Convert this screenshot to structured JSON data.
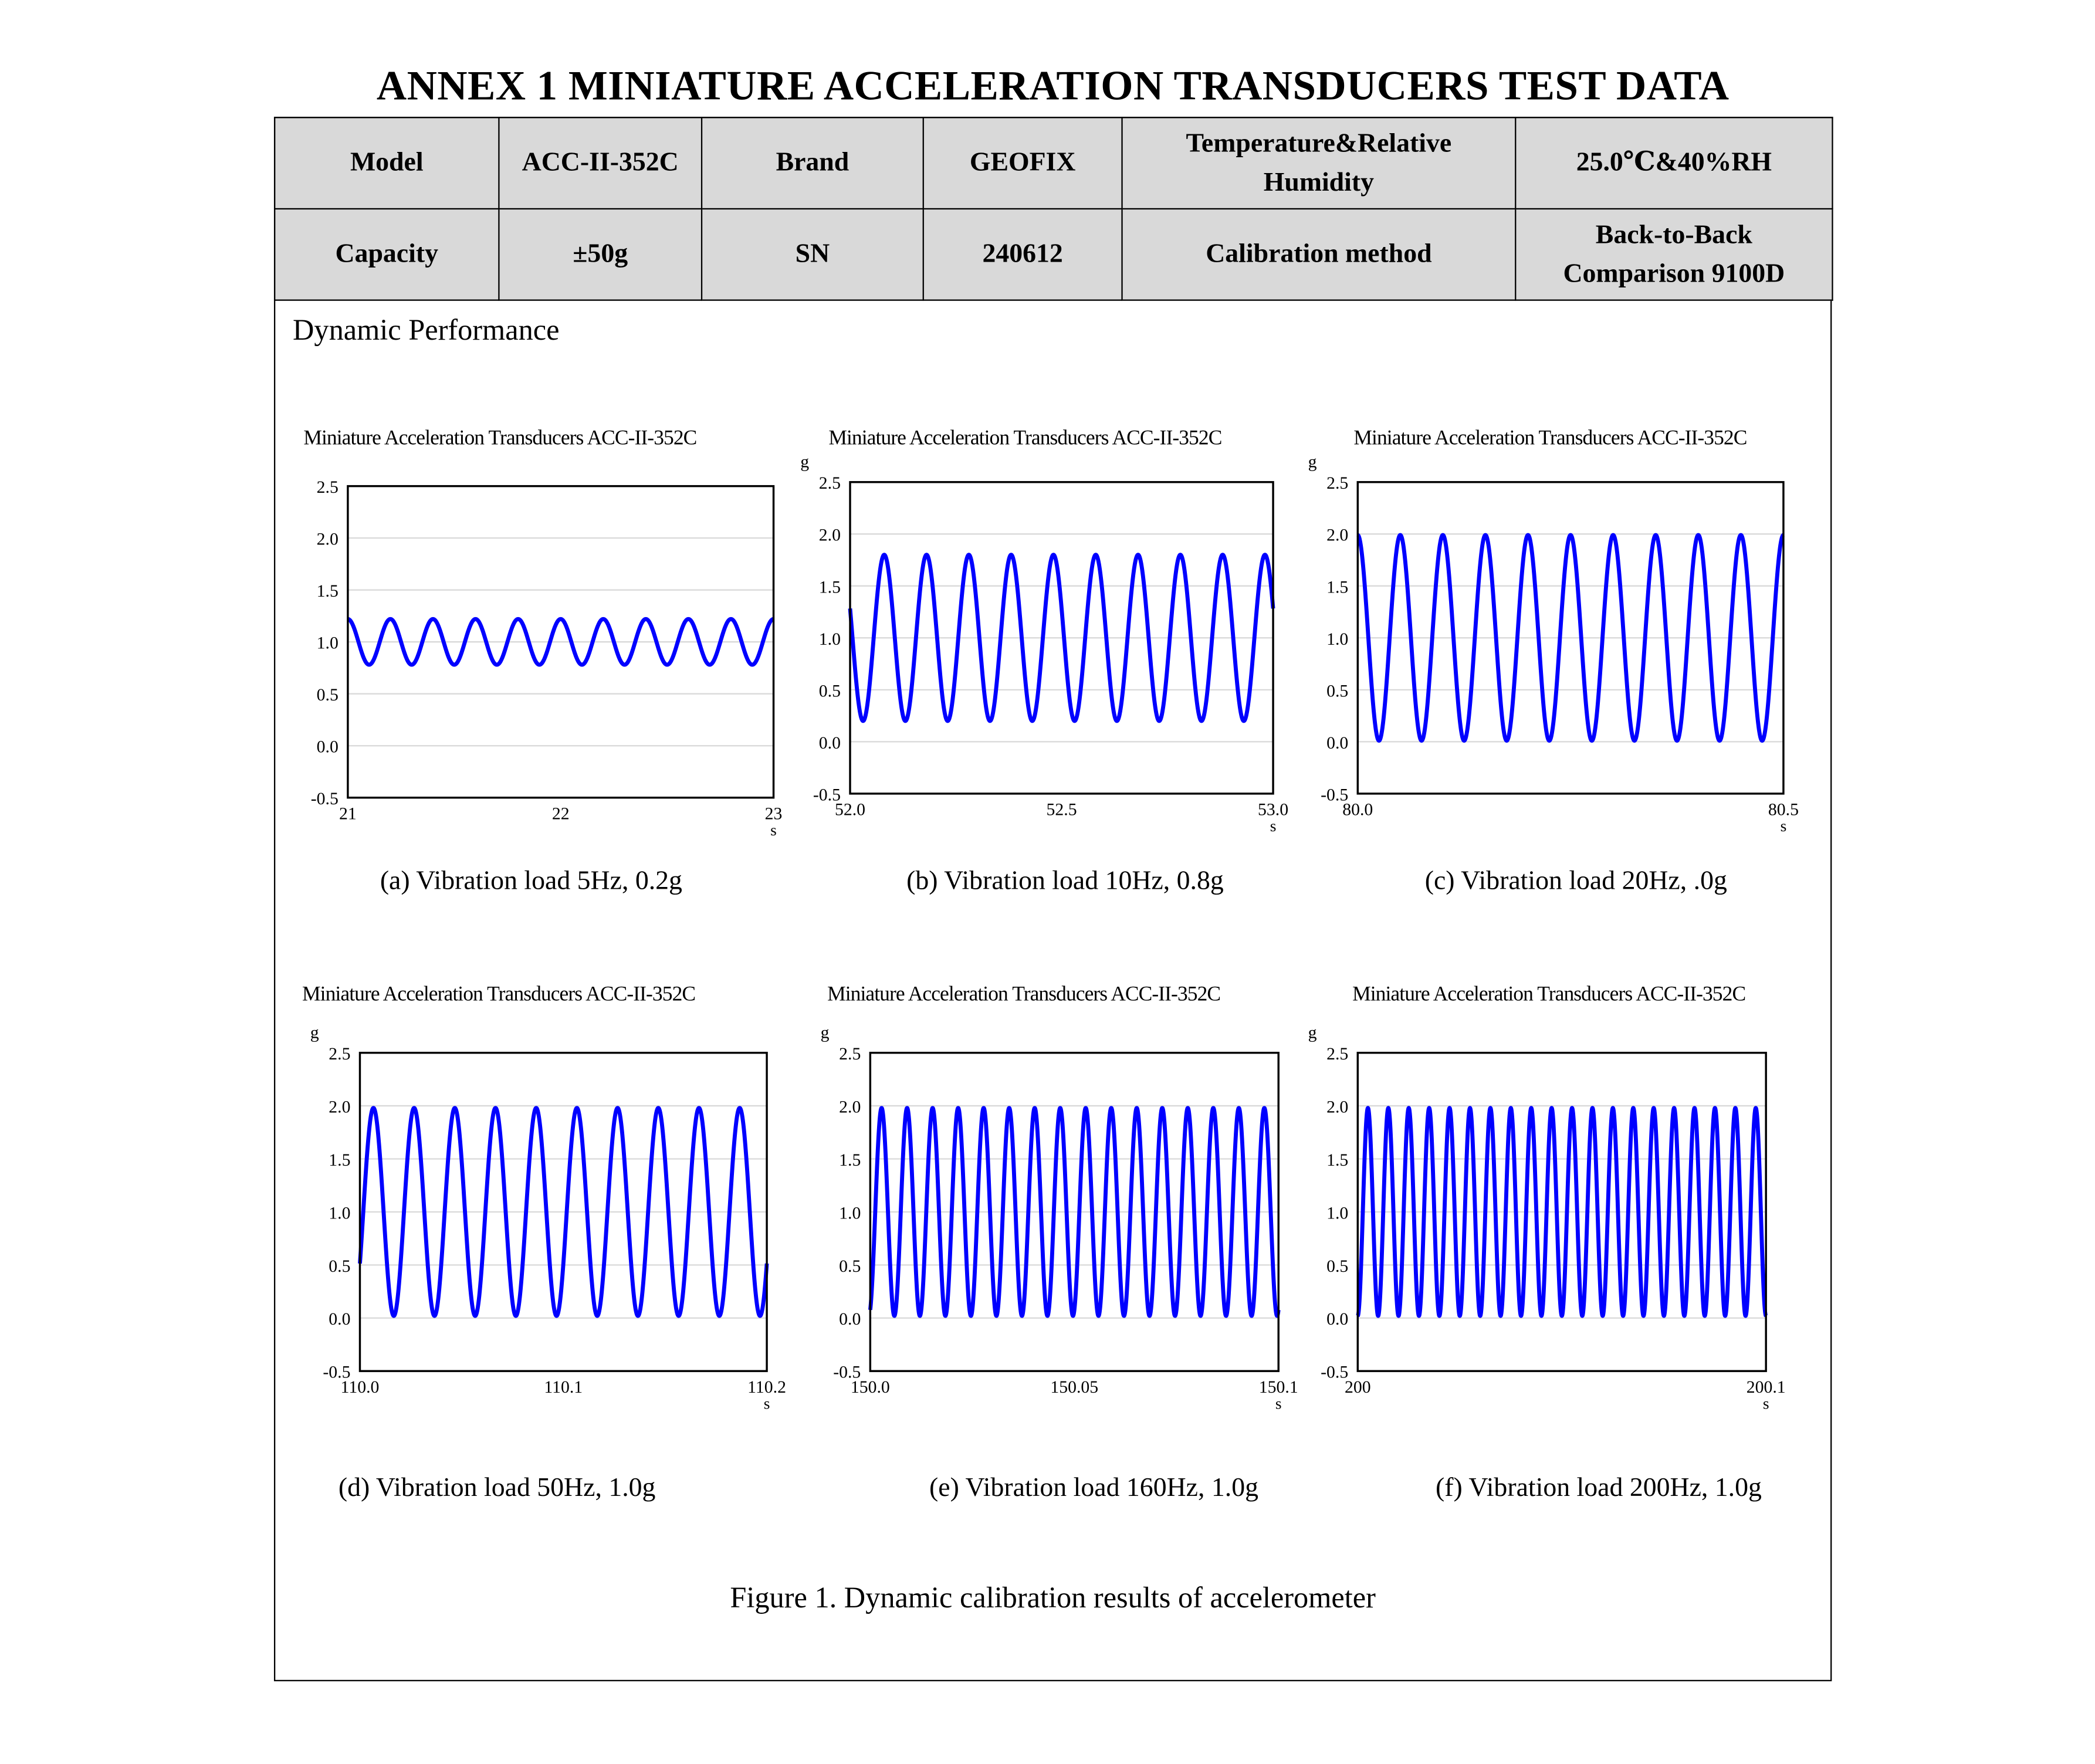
{
  "title": "ANNEX 1 MINIATURE ACCELERATION TRANSDUCERS TEST DATA",
  "info_table": {
    "row1": [
      "Model",
      "ACC-II-352C",
      "Brand",
      "GEOFIX",
      "Temperature&Relative Humidity",
      "25.0℃&40%RH"
    ],
    "row2": [
      "Capacity",
      "±50g",
      "SN",
      "240612",
      "Calibration method",
      "Back-to-Back Comparison 9100D"
    ]
  },
  "section_label": "Dynamic Performance",
  "figure_caption": "Figure 1. Dynamic calibration results of accelerometer",
  "colors": {
    "series": "#0000ff",
    "grid": "#d9d9d9",
    "header_bg": "#d9d9d9"
  },
  "chart_data": [
    {
      "type": "line",
      "title": "Miniature Acceleration Transducers ACC-II-352C",
      "caption": "(a)  Vibration load 5Hz, 0.2g",
      "ylabel": "",
      "xlabel": "s",
      "ylim": [
        -0.5,
        2.5
      ],
      "yticks": [
        "-0.5",
        "0.0",
        "0.5",
        "1.0",
        "1.5",
        "2.0",
        "2.5"
      ],
      "xlim": [
        21,
        23
      ],
      "xticks": [
        {
          "v": 21,
          "label": "21"
        },
        {
          "v": 22,
          "label": "22"
        },
        {
          "v": 23,
          "label": "23"
        }
      ],
      "grid": true,
      "series": [
        {
          "name": "acceleration",
          "mean": 1.0,
          "amplitude": 0.22,
          "frequency_hz": 5,
          "phase_rad": 0
        }
      ]
    },
    {
      "type": "line",
      "title": "Miniature Acceleration Transducers ACC-II-352C",
      "caption": "(b) Vibration load 10Hz, 0.8g",
      "ylabel": "g",
      "xlabel": "s",
      "ylim": [
        -0.5,
        2.5
      ],
      "yticks": [
        "-0.5",
        "0.0",
        "0.5",
        "1.0",
        "1.5",
        "2.0",
        "2.5"
      ],
      "xlim": [
        52.0,
        53.0
      ],
      "xticks": [
        {
          "v": 52.0,
          "label": "52.0"
        },
        {
          "v": 52.5,
          "label": "52.5"
        },
        {
          "v": 53.0,
          "label": "53.0"
        }
      ],
      "grid": true,
      "series": [
        {
          "name": "acceleration",
          "mean": 1.0,
          "amplitude": 0.8,
          "frequency_hz": 10,
          "phase_rad": 1.21
        }
      ]
    },
    {
      "type": "line",
      "title": "Miniature Acceleration Transducers ACC-II-352C",
      "caption": "(c) Vibration load 20Hz, .0g",
      "ylabel": "g",
      "xlabel": "s",
      "ylim": [
        -0.5,
        2.5
      ],
      "yticks": [
        "-0.5",
        "0.0",
        "0.5",
        "1.0",
        "1.5",
        "2.0",
        "2.5"
      ],
      "xlim": [
        80.0,
        80.5
      ],
      "xticks": [
        {
          "v": 80.0,
          "label": "80.0"
        },
        {
          "v": 80.5,
          "label": "80.5"
        }
      ],
      "grid": true,
      "series": [
        {
          "name": "acceleration",
          "mean": 1.0,
          "amplitude": 0.99,
          "frequency_hz": 20,
          "phase_rad": 0
        }
      ]
    },
    {
      "type": "line",
      "title": "Miniature Acceleration Transducers ACC-II-352C",
      "caption": "(d) Vibration load 50Hz, 1.0g",
      "ylabel": "g",
      "xlabel": "s",
      "ylim": [
        -0.5,
        2.5
      ],
      "yticks": [
        "-0.5",
        "0.0",
        "0.5",
        "1.0",
        "1.5",
        "2.0",
        "2.5"
      ],
      "xlim": [
        110.0,
        110.2
      ],
      "xticks": [
        {
          "v": 110.0,
          "label": "110.0"
        },
        {
          "v": 110.1,
          "label": "110.1"
        },
        {
          "v": 110.2,
          "label": "110.2"
        }
      ],
      "grid": true,
      "series": [
        {
          "name": "acceleration",
          "mean": 1.0,
          "amplitude": 0.98,
          "frequency_hz": 50,
          "phase_rad": -2.09
        }
      ]
    },
    {
      "type": "line",
      "title": "Miniature Acceleration Transducers ACC-II-352C",
      "caption": "(e) Vibration load 160Hz, 1.0g",
      "ylabel": "g",
      "xlabel": "s",
      "ylim": [
        -0.5,
        2.5
      ],
      "yticks": [
        "-0.5",
        "0.0",
        "0.5",
        "1.0",
        "1.5",
        "2.0",
        "2.5"
      ],
      "xlim": [
        150.0,
        150.1
      ],
      "xticks": [
        {
          "v": 150.0,
          "label": "150.0"
        },
        {
          "v": 150.05,
          "label": "150.05"
        },
        {
          "v": 150.1,
          "label": "150.1"
        }
      ],
      "grid": true,
      "series": [
        {
          "name": "acceleration",
          "mean": 1.0,
          "amplitude": 0.98,
          "frequency_hz": 160,
          "phase_rad": -2.8
        }
      ]
    },
    {
      "type": "line",
      "title": "Miniature Acceleration Transducers ACC-II-352C",
      "caption": "(f) Vibration load 200Hz, 1.0g",
      "ylabel": "g",
      "xlabel": "s",
      "ylim": [
        -0.5,
        2.5
      ],
      "yticks": [
        "-0.5",
        "0.0",
        "0.5",
        "1.0",
        "1.5",
        "2.0",
        "2.5"
      ],
      "xlim": [
        200,
        200.1
      ],
      "xticks": [
        {
          "v": 200,
          "label": "200"
        },
        {
          "v": 200.1,
          "label": "200.1"
        }
      ],
      "grid": true,
      "series": [
        {
          "name": "acceleration",
          "mean": 1.0,
          "amplitude": 0.98,
          "frequency_hz": 200,
          "phase_rad": 3.1416
        }
      ]
    }
  ]
}
